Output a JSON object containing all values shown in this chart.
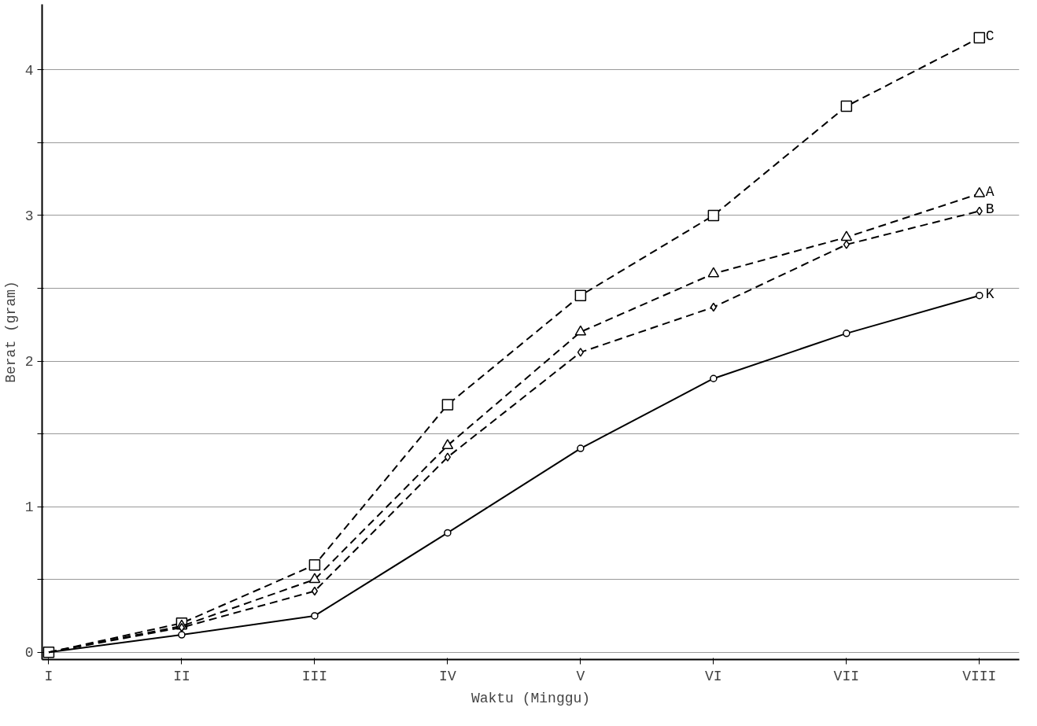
{
  "chart_data": {
    "type": "line",
    "xlabel": "Waktu (Minggu)",
    "ylabel": "Berat (gram)",
    "categories": [
      "I",
      "II",
      "III",
      "IV",
      "V",
      "VI",
      "VII",
      "VIII"
    ],
    "series": [
      {
        "name": "C",
        "color": "#000000",
        "marker": "square",
        "line_style": "dashed",
        "values": [
          0,
          0.2,
          0.6,
          1.7,
          2.45,
          3.0,
          3.75,
          4.22
        ]
      },
      {
        "name": "A",
        "color": "#000000",
        "marker": "triangle",
        "line_style": "dashed",
        "values": [
          0,
          0.18,
          0.5,
          1.42,
          2.2,
          2.6,
          2.85,
          3.15
        ]
      },
      {
        "name": "B",
        "color": "#000000",
        "marker": "diamond",
        "line_style": "dashed",
        "values": [
          0,
          0.17,
          0.42,
          1.34,
          2.06,
          2.37,
          2.8,
          3.03
        ]
      },
      {
        "name": "K",
        "color": "#000000",
        "marker": "circle",
        "line_style": "solid",
        "values": [
          0,
          0.12,
          0.25,
          0.82,
          1.4,
          1.88,
          2.19,
          2.45
        ]
      }
    ],
    "ylim": [
      -0.05,
      4.45
    ],
    "yticks": [
      0,
      {
        "value": 0.5,
        "label": null
      },
      1,
      {
        "value": 1.5,
        "label": null
      },
      2,
      {
        "value": 2.5,
        "label": null
      },
      3,
      {
        "value": 3.5,
        "label": null
      },
      4
    ],
    "grid": "y"
  }
}
